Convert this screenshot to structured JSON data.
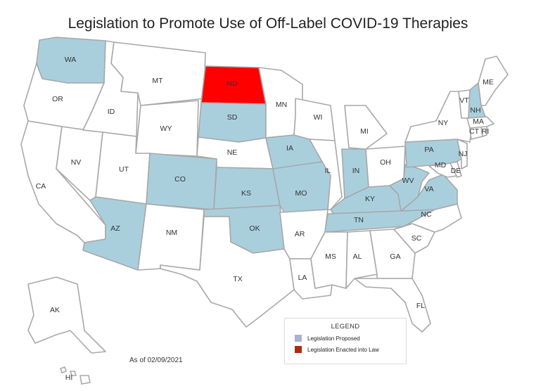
{
  "title": "Legislation to Promote Use of Off-Label COVID-19 Therapies",
  "as_of": "As of 02/09/2021",
  "colors": {
    "proposed": "#a9cfdd",
    "enacted": "#ff0000",
    "none": "#ffffff",
    "border": "#a8a8a8"
  },
  "legend": {
    "title": "LEGEND",
    "items": [
      {
        "label": "Legislation Proposed",
        "color": "#a9b2d1"
      },
      {
        "label": "Legislation Enacted into Law",
        "color": "#b22a0b"
      }
    ]
  },
  "states": {
    "WA": "proposed",
    "OR": "none",
    "CA": "none",
    "NV": "none",
    "ID": "none",
    "MT": "none",
    "WY": "none",
    "UT": "none",
    "AZ": "proposed",
    "CO": "proposed",
    "NM": "none",
    "ND": "enacted",
    "SD": "proposed",
    "NE": "none",
    "KS": "proposed",
    "OK": "proposed",
    "TX": "none",
    "MN": "none",
    "IA": "proposed",
    "MO": "proposed",
    "AR": "none",
    "LA": "none",
    "WI": "none",
    "IL": "none",
    "MI": "none",
    "IN": "proposed",
    "OH": "none",
    "KY": "proposed",
    "TN": "proposed",
    "MS": "none",
    "AL": "none",
    "GA": "none",
    "FL": "none",
    "SC": "none",
    "NC": "none",
    "VA": "proposed",
    "WV": "proposed",
    "PA": "proposed",
    "NY": "none",
    "NJ": "none",
    "DE": "none",
    "MD": "none",
    "CT": "none",
    "RI": "none",
    "MA": "none",
    "VT": "none",
    "NH": "proposed",
    "ME": "none",
    "AK": "none",
    "HI": "none"
  }
}
